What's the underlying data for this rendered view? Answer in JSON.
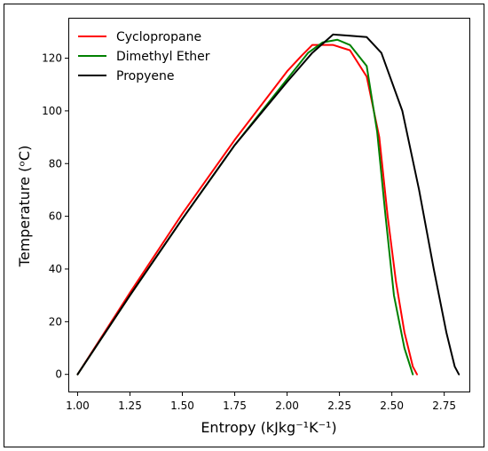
{
  "chart_data": {
    "type": "line",
    "xlabel": "Entropy (kJkg⁻¹K⁻¹)",
    "ylabel": "Temperature (ᵒC)",
    "xlim": [
      0.96,
      2.87
    ],
    "ylim": [
      -6.5,
      135
    ],
    "xticks": [
      1.0,
      1.25,
      1.5,
      1.75,
      2.0,
      2.25,
      2.5,
      2.75
    ],
    "xtick_labels": [
      "1.00",
      "1.25",
      "1.50",
      "1.75",
      "2.00",
      "2.25",
      "2.50",
      "2.75"
    ],
    "yticks": [
      0,
      20,
      40,
      60,
      80,
      100,
      120
    ],
    "ytick_labels": [
      "0",
      "20",
      "40",
      "60",
      "80",
      "100",
      "120"
    ],
    "grid": false,
    "legend_position": "top-left",
    "series": [
      {
        "name": "Cyclopropane",
        "color": "#ff0000",
        "points": [
          [
            1.0,
            0
          ],
          [
            1.25,
            31
          ],
          [
            1.5,
            61
          ],
          [
            1.75,
            89
          ],
          [
            2.0,
            115
          ],
          [
            2.07,
            121
          ],
          [
            2.12,
            125
          ],
          [
            2.22,
            125
          ],
          [
            2.3,
            123
          ],
          [
            2.38,
            113
          ],
          [
            2.44,
            90
          ],
          [
            2.48,
            60
          ],
          [
            2.52,
            35
          ],
          [
            2.56,
            16
          ],
          [
            2.6,
            3
          ],
          [
            2.62,
            0
          ]
        ]
      },
      {
        "name": "Dimethyl Ether",
        "color": "#008000",
        "points": [
          [
            1.0,
            0
          ],
          [
            1.25,
            30
          ],
          [
            1.5,
            59
          ],
          [
            1.75,
            87
          ],
          [
            2.0,
            112
          ],
          [
            2.1,
            122
          ],
          [
            2.17,
            126
          ],
          [
            2.24,
            127
          ],
          [
            2.3,
            125
          ],
          [
            2.38,
            117
          ],
          [
            2.43,
            92
          ],
          [
            2.47,
            60
          ],
          [
            2.51,
            30
          ],
          [
            2.56,
            10
          ],
          [
            2.6,
            0
          ]
        ]
      },
      {
        "name": "Propyene",
        "color": "#000000",
        "points": [
          [
            1.0,
            0
          ],
          [
            1.25,
            30
          ],
          [
            1.5,
            59
          ],
          [
            1.75,
            87
          ],
          [
            2.0,
            111
          ],
          [
            2.12,
            122
          ],
          [
            2.22,
            129
          ],
          [
            2.3,
            128.5
          ],
          [
            2.38,
            128
          ],
          [
            2.45,
            122
          ],
          [
            2.55,
            100
          ],
          [
            2.63,
            70
          ],
          [
            2.7,
            40
          ],
          [
            2.76,
            16
          ],
          [
            2.8,
            3
          ],
          [
            2.82,
            0
          ]
        ]
      }
    ]
  }
}
